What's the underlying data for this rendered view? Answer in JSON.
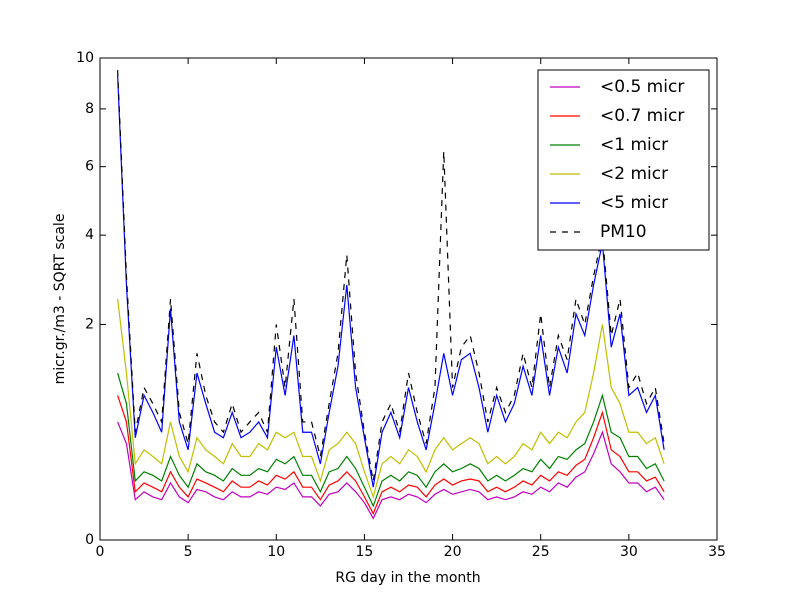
{
  "chart_data": {
    "type": "line",
    "xlabel": "RG day in the month",
    "ylabel": "micr.gr./m3 - SQRT scale",
    "yscale": "sqrt",
    "xlim": [
      0,
      35
    ],
    "xticks": [
      0,
      5,
      10,
      15,
      20,
      25,
      30,
      35
    ],
    "ylim": [
      0,
      10
    ],
    "yticks": [
      0,
      2,
      4,
      6,
      8,
      10
    ],
    "grid": false,
    "legend": "upper right",
    "x": [
      1,
      1.5,
      2,
      2.5,
      3,
      3.5,
      4,
      4.5,
      5,
      5.5,
      6,
      6.5,
      7,
      7.5,
      8,
      8.5,
      9,
      9.5,
      10,
      10.5,
      11,
      11.5,
      12,
      12.5,
      13,
      13.5,
      14,
      14.5,
      15,
      15.5,
      16,
      16.5,
      17,
      17.5,
      18,
      18.5,
      19,
      19.5,
      20,
      20.5,
      21,
      21.5,
      22,
      22.5,
      23,
      23.5,
      24,
      24.5,
      25,
      25.5,
      26,
      26.5,
      27,
      27.5,
      28,
      28.5,
      29,
      29.5,
      30,
      30.5,
      31,
      31.5,
      32
    ],
    "series": [
      {
        "name": "<0.5 micr",
        "color": "#bf00bf",
        "linestyle": "solid",
        "values": [
          0.6,
          0.4,
          0.07,
          0.1,
          0.08,
          0.07,
          0.14,
          0.08,
          0.06,
          0.11,
          0.1,
          0.08,
          0.07,
          0.1,
          0.08,
          0.08,
          0.1,
          0.09,
          0.12,
          0.11,
          0.14,
          0.08,
          0.08,
          0.05,
          0.09,
          0.1,
          0.14,
          0.1,
          0.06,
          0.02,
          0.07,
          0.08,
          0.07,
          0.09,
          0.08,
          0.06,
          0.09,
          0.11,
          0.09,
          0.1,
          0.11,
          0.1,
          0.07,
          0.08,
          0.07,
          0.08,
          0.1,
          0.09,
          0.12,
          0.1,
          0.14,
          0.12,
          0.17,
          0.2,
          0.32,
          0.5,
          0.25,
          0.2,
          0.14,
          0.14,
          0.1,
          0.12,
          0.07
        ]
      },
      {
        "name": "<0.7 micr",
        "color": "#ff0000",
        "linestyle": "solid",
        "values": [
          0.9,
          0.6,
          0.1,
          0.14,
          0.12,
          0.1,
          0.2,
          0.12,
          0.08,
          0.16,
          0.14,
          0.12,
          0.1,
          0.15,
          0.12,
          0.12,
          0.15,
          0.13,
          0.18,
          0.16,
          0.2,
          0.12,
          0.12,
          0.07,
          0.13,
          0.15,
          0.2,
          0.15,
          0.08,
          0.03,
          0.1,
          0.12,
          0.1,
          0.13,
          0.12,
          0.08,
          0.13,
          0.16,
          0.13,
          0.15,
          0.16,
          0.15,
          0.1,
          0.12,
          0.1,
          0.12,
          0.15,
          0.13,
          0.18,
          0.15,
          0.2,
          0.18,
          0.24,
          0.28,
          0.45,
          0.7,
          0.35,
          0.3,
          0.2,
          0.2,
          0.15,
          0.17,
          0.1
        ]
      },
      {
        "name": "<1 micr",
        "color": "#008000",
        "linestyle": "solid",
        "values": [
          1.2,
          0.8,
          0.15,
          0.2,
          0.18,
          0.15,
          0.3,
          0.18,
          0.12,
          0.25,
          0.2,
          0.18,
          0.15,
          0.22,
          0.18,
          0.18,
          0.22,
          0.2,
          0.28,
          0.25,
          0.3,
          0.18,
          0.18,
          0.1,
          0.2,
          0.22,
          0.3,
          0.22,
          0.12,
          0.05,
          0.15,
          0.18,
          0.15,
          0.2,
          0.18,
          0.12,
          0.2,
          0.25,
          0.2,
          0.22,
          0.25,
          0.22,
          0.15,
          0.18,
          0.15,
          0.18,
          0.22,
          0.2,
          0.28,
          0.22,
          0.3,
          0.28,
          0.35,
          0.4,
          0.6,
          0.9,
          0.5,
          0.45,
          0.3,
          0.3,
          0.22,
          0.25,
          0.15
        ]
      },
      {
        "name": "<2 micr",
        "color": "#bfbf00",
        "linestyle": "solid",
        "values": [
          2.5,
          1.2,
          0.25,
          0.35,
          0.3,
          0.25,
          0.6,
          0.3,
          0.2,
          0.45,
          0.35,
          0.3,
          0.25,
          0.4,
          0.3,
          0.3,
          0.4,
          0.35,
          0.5,
          0.45,
          0.5,
          0.3,
          0.3,
          0.15,
          0.35,
          0.4,
          0.5,
          0.4,
          0.2,
          0.08,
          0.25,
          0.3,
          0.25,
          0.35,
          0.3,
          0.2,
          0.35,
          0.45,
          0.35,
          0.4,
          0.45,
          0.4,
          0.25,
          0.3,
          0.25,
          0.3,
          0.4,
          0.35,
          0.5,
          0.4,
          0.5,
          0.45,
          0.6,
          0.7,
          1.2,
          2.0,
          1.0,
          0.8,
          0.5,
          0.5,
          0.4,
          0.45,
          0.25
        ]
      },
      {
        "name": "<5 micr",
        "color": "#0000ff",
        "linestyle": "solid",
        "values": [
          9.3,
          2.8,
          0.45,
          0.9,
          0.7,
          0.5,
          2.3,
          0.6,
          0.35,
          1.2,
          0.8,
          0.5,
          0.45,
          0.7,
          0.45,
          0.5,
          0.6,
          0.45,
          1.6,
          0.9,
          1.8,
          0.5,
          0.5,
          0.25,
          0.7,
          1.3,
          2.8,
          1.0,
          0.45,
          0.12,
          0.5,
          0.7,
          0.45,
          1.0,
          0.6,
          0.35,
          0.8,
          1.5,
          0.9,
          1.4,
          1.5,
          1.0,
          0.5,
          0.9,
          0.6,
          0.8,
          1.3,
          0.9,
          1.8,
          0.9,
          1.6,
          1.2,
          2.2,
          1.8,
          2.8,
          3.8,
          1.6,
          2.2,
          0.9,
          1.0,
          0.7,
          0.9,
          0.35
        ]
      },
      {
        "name": "PM10",
        "color": "#000000",
        "linestyle": "dashed",
        "values": [
          9.5,
          3.0,
          0.5,
          1.0,
          0.8,
          0.6,
          2.5,
          0.7,
          0.4,
          1.5,
          0.9,
          0.6,
          0.5,
          0.8,
          0.5,
          0.6,
          0.7,
          0.5,
          2.0,
          1.0,
          2.5,
          0.6,
          0.6,
          0.3,
          0.8,
          1.5,
          3.5,
          1.2,
          0.5,
          0.15,
          0.6,
          0.8,
          0.5,
          1.2,
          0.7,
          0.4,
          1.0,
          6.5,
          1.0,
          1.6,
          1.8,
          1.2,
          0.6,
          1.0,
          0.7,
          0.9,
          1.5,
          1.0,
          2.2,
          1.0,
          1.8,
          1.4,
          2.5,
          2.0,
          3.0,
          4.0,
          1.8,
          2.5,
          1.0,
          1.2,
          0.8,
          1.0,
          0.4
        ]
      }
    ]
  }
}
